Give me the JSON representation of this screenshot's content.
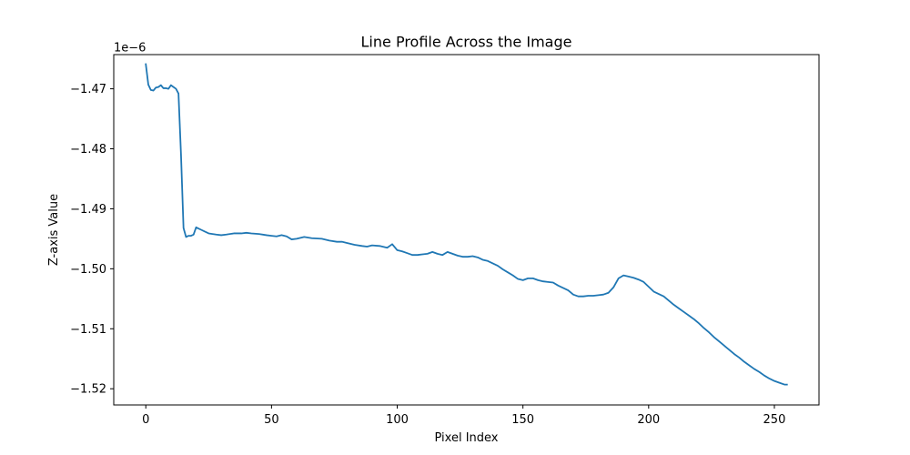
{
  "chart_data": {
    "type": "line",
    "title": "Line Profile Across the Image",
    "xlabel": "Pixel Index",
    "ylabel": "Z-axis Value",
    "offset_label": "1e−6",
    "xlim": [
      -12.75,
      267.75
    ],
    "ylim": [
      -1.5227,
      -1.4643
    ],
    "xticks": [
      0,
      50,
      100,
      150,
      200,
      250
    ],
    "yticks": [
      -1.47,
      -1.48,
      -1.49,
      -1.5,
      -1.51,
      -1.52
    ],
    "ytick_labels": [
      "−1.47",
      "−1.48",
      "−1.49",
      "−1.50",
      "−1.51",
      "−1.52"
    ],
    "grid": false,
    "line_color": "#1f77b4",
    "series": [
      {
        "x": [
          0,
          1,
          2,
          3,
          4,
          5,
          6,
          7,
          8,
          9,
          10,
          11,
          12,
          13,
          14,
          15,
          16,
          17,
          18,
          19,
          20,
          21,
          22,
          25,
          28,
          30,
          32,
          35,
          38,
          40,
          42,
          45,
          48,
          50,
          52,
          54,
          56,
          58,
          60,
          63,
          66,
          70,
          73,
          76,
          78,
          80,
          83,
          86,
          88,
          90,
          93,
          96,
          97,
          98,
          100,
          102,
          104,
          106,
          108,
          110,
          112,
          114,
          116,
          118,
          120,
          122,
          124,
          126,
          128,
          130,
          132,
          134,
          136,
          138,
          140,
          142,
          144,
          146,
          148,
          150,
          152,
          154,
          156,
          158,
          160,
          162,
          164,
          166,
          168,
          170,
          172,
          174,
          176,
          178,
          180,
          182,
          184,
          186,
          188,
          190,
          192,
          194,
          196,
          198,
          200,
          202,
          204,
          206,
          208,
          210,
          212,
          214,
          216,
          218,
          220,
          222,
          224,
          226,
          228,
          230,
          232,
          234,
          236,
          238,
          240,
          242,
          244,
          246,
          248,
          250,
          252,
          254,
          255
        ],
        "y": [
          -1.4659,
          -1.4693,
          -1.4702,
          -1.4703,
          -1.4698,
          -1.4697,
          -1.4694,
          -1.4699,
          -1.4699,
          -1.47,
          -1.4694,
          -1.4697,
          -1.47,
          -1.4708,
          -1.481,
          -1.4932,
          -1.4947,
          -1.4945,
          -1.4945,
          -1.4943,
          -1.4931,
          -1.4933,
          -1.4935,
          -1.4941,
          -1.4943,
          -1.4944,
          -1.4943,
          -1.4941,
          -1.4941,
          -1.494,
          -1.4941,
          -1.4942,
          -1.4944,
          -1.4945,
          -1.4946,
          -1.4944,
          -1.4946,
          -1.4951,
          -1.495,
          -1.4947,
          -1.4949,
          -1.495,
          -1.4953,
          -1.4955,
          -1.4955,
          -1.4957,
          -1.496,
          -1.4962,
          -1.4963,
          -1.4961,
          -1.4962,
          -1.4965,
          -1.4962,
          -1.4959,
          -1.4969,
          -1.4971,
          -1.4974,
          -1.4977,
          -1.4977,
          -1.4976,
          -1.4975,
          -1.4972,
          -1.4975,
          -1.4977,
          -1.4972,
          -1.4975,
          -1.4978,
          -1.498,
          -1.498,
          -1.4979,
          -1.4981,
          -1.4985,
          -1.4987,
          -1.4991,
          -1.4995,
          -1.5001,
          -1.5006,
          -1.5011,
          -1.5017,
          -1.5019,
          -1.5016,
          -1.5016,
          -1.5019,
          -1.5021,
          -1.5022,
          -1.5023,
          -1.5028,
          -1.5032,
          -1.5036,
          -1.5043,
          -1.5046,
          -1.5046,
          -1.5045,
          -1.5045,
          -1.5044,
          -1.5043,
          -1.504,
          -1.5031,
          -1.5016,
          -1.5011,
          -1.5013,
          -1.5015,
          -1.5018,
          -1.5022,
          -1.503,
          -1.5038,
          -1.5042,
          -1.5046,
          -1.5053,
          -1.506,
          -1.5066,
          -1.5072,
          -1.5078,
          -1.5084,
          -1.5091,
          -1.5099,
          -1.5106,
          -1.5114,
          -1.5121,
          -1.5128,
          -1.5135,
          -1.5142,
          -1.5148,
          -1.5155,
          -1.5161,
          -1.5167,
          -1.5172,
          -1.5178,
          -1.5183,
          -1.5187,
          -1.519,
          -1.5193,
          -1.5193
        ]
      }
    ]
  }
}
